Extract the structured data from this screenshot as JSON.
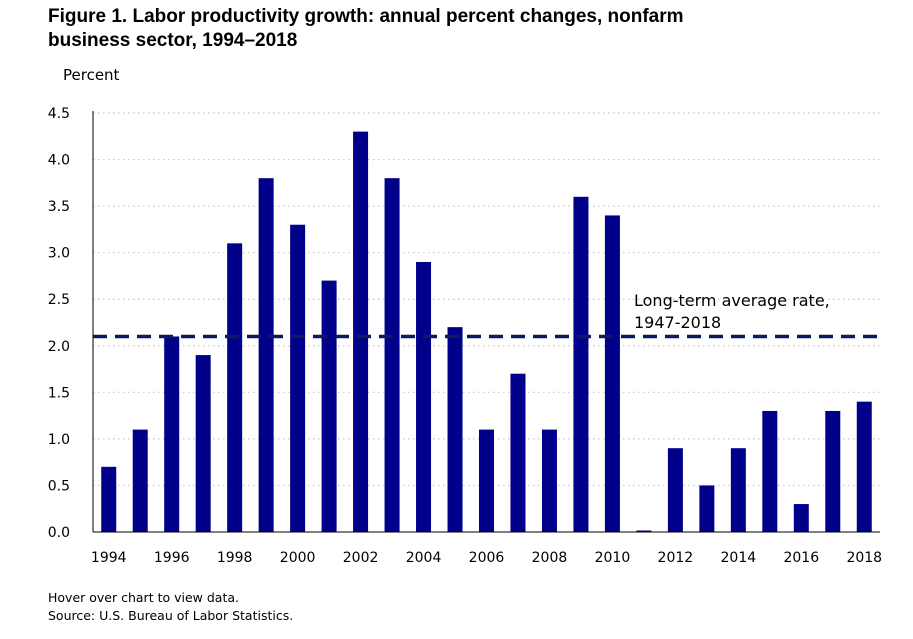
{
  "title": "Figure 1. Labor productivity growth: annual percent changes, nonfarm\nbusiness sector, 1994–2018",
  "footer": {
    "hover_note": "Hover over chart to view data.",
    "source": "Source: U.S. Bureau of Labor Statistics."
  },
  "colors": {
    "bar": "#00008b",
    "average_line": "#0d1b5e",
    "grid": "#c8c8c8"
  },
  "chart_data": {
    "type": "bar",
    "title": "Figure 1. Labor productivity growth: annual percent changes, nonfarm business sector, 1994–2018",
    "ylabel": "Percent",
    "xlabel": "",
    "ylim": [
      0,
      4.5
    ],
    "yticks": [
      "0.0",
      "0.5",
      "1.0",
      "1.5",
      "2.0",
      "2.5",
      "3.0",
      "3.5",
      "4.0",
      "4.5"
    ],
    "xtick_labels": [
      "1994",
      "1996",
      "1998",
      "2000",
      "2002",
      "2004",
      "2006",
      "2008",
      "2010",
      "2012",
      "2014",
      "2016",
      "2018"
    ],
    "grid": "horizontal dotted",
    "categories": [
      "1994",
      "1995",
      "1996",
      "1997",
      "1998",
      "1999",
      "2000",
      "2001",
      "2002",
      "2003",
      "2004",
      "2005",
      "2006",
      "2007",
      "2008",
      "2009",
      "2010",
      "2011",
      "2012",
      "2013",
      "2014",
      "2015",
      "2016",
      "2017",
      "2018"
    ],
    "values": [
      0.7,
      1.1,
      2.1,
      1.9,
      3.1,
      3.8,
      3.3,
      2.7,
      4.3,
      3.8,
      2.9,
      2.2,
      1.1,
      1.7,
      1.1,
      3.6,
      3.4,
      0.0,
      0.9,
      0.5,
      0.9,
      1.3,
      0.3,
      1.3,
      1.4
    ],
    "reference_line": {
      "value": 2.1,
      "style": "dashed",
      "label_line1": "Long-term average rate,",
      "label_line2": "1947-2018"
    }
  }
}
